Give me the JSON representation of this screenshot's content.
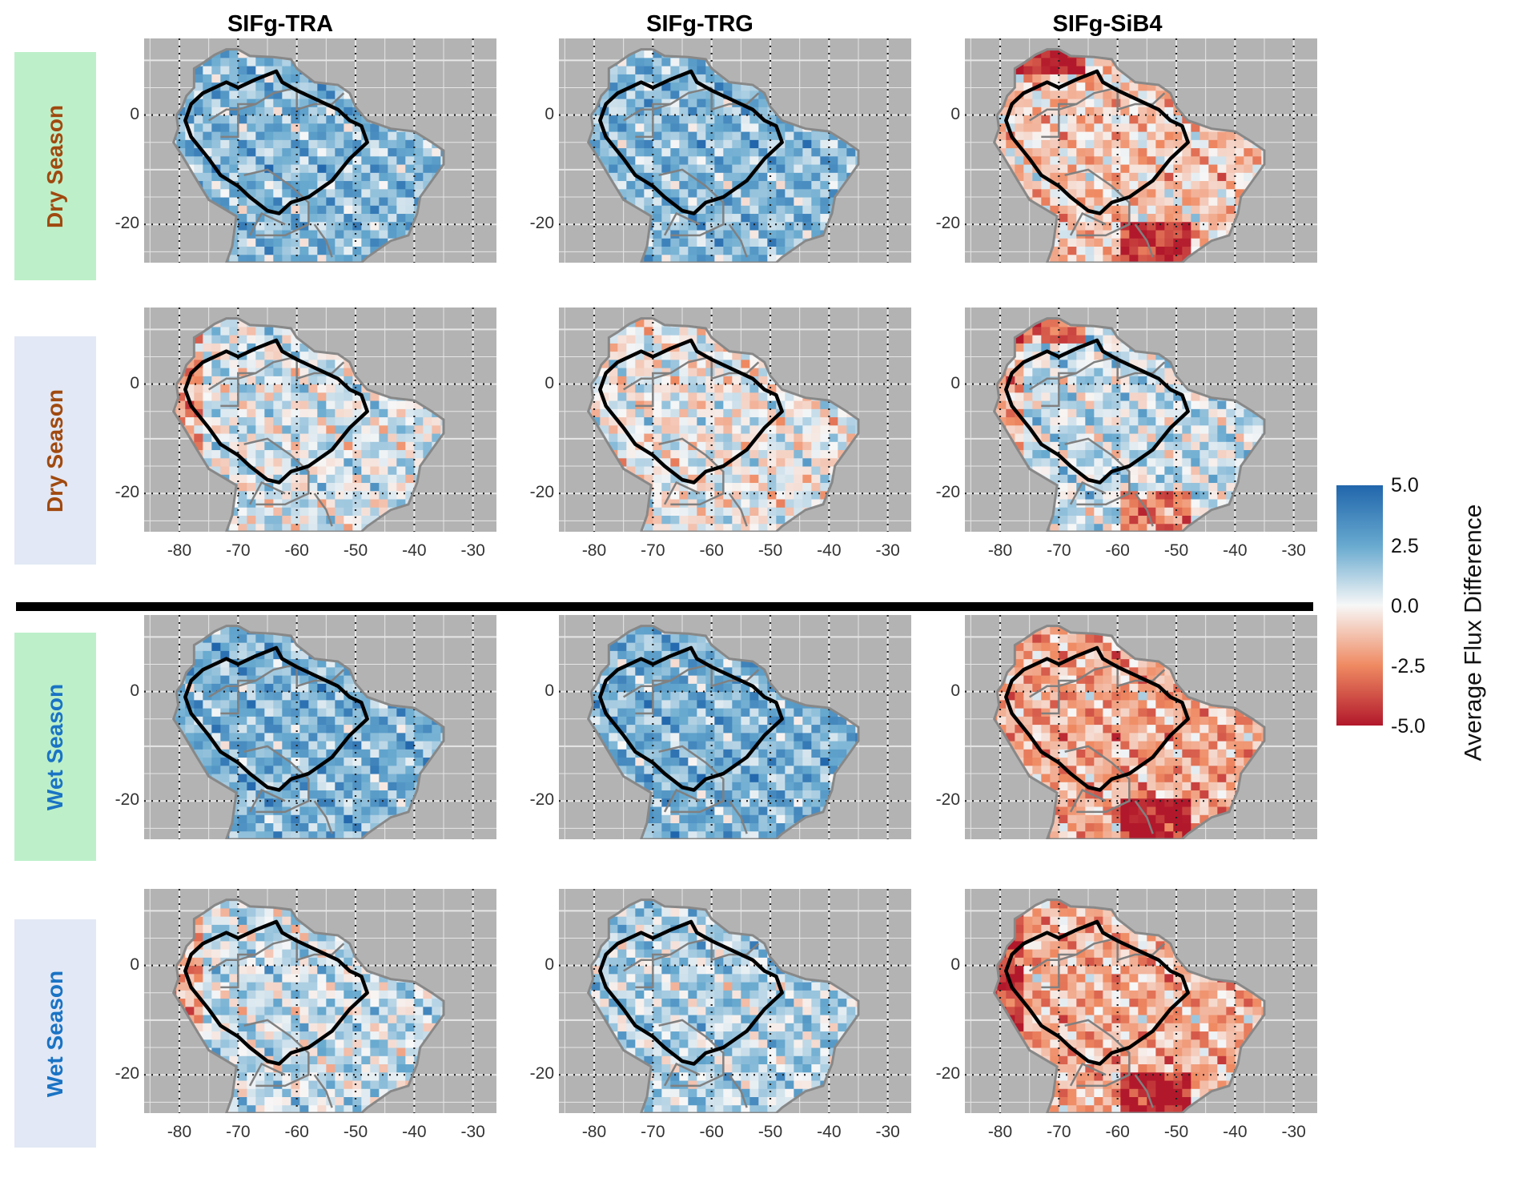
{
  "chart_data": {
    "type": "heatmap",
    "column_titles": [
      "SIFg-TRA",
      "SIFg-TRG",
      "SIFg-SiB4"
    ],
    "row_labels": [
      {
        "label": "Dry Season",
        "text_color": "#a0490f",
        "bg_color": "#bdf0c9"
      },
      {
        "label": "Dry Season",
        "text_color": "#a0490f",
        "bg_color": "#e2e8f5"
      },
      {
        "label": "Wet Season",
        "text_color": "#1a73c4",
        "bg_color": "#bdf0c9"
      },
      {
        "label": "Wet Season",
        "text_color": "#1a73c4",
        "bg_color": "#e2e8f5"
      }
    ],
    "y_ticks": [
      "0",
      "-20"
    ],
    "x_ticks": [
      "-80",
      "-70",
      "-60",
      "-50",
      "-40",
      "-30"
    ],
    "xlim": [
      -86,
      -26
    ],
    "ylim": [
      -27,
      14
    ],
    "grid": true,
    "panel_bias": [
      [
        2.0,
        2.0,
        -1.0
      ],
      [
        0.5,
        0.0,
        0.8
      ],
      [
        2.2,
        2.2,
        -1.8
      ],
      [
        0.8,
        1.2,
        -1.6
      ]
    ],
    "legend": {
      "title": "Average Flux Difference",
      "ticks": [
        "5.0",
        "2.5",
        "0.0",
        "-2.5",
        "-5.0"
      ],
      "range": [
        -5.0,
        5.0
      ],
      "placement": "right",
      "colors": [
        "#b2182b",
        "#ef8a62",
        "#f7f7f7",
        "#67a9cf",
        "#2166ac"
      ]
    }
  }
}
